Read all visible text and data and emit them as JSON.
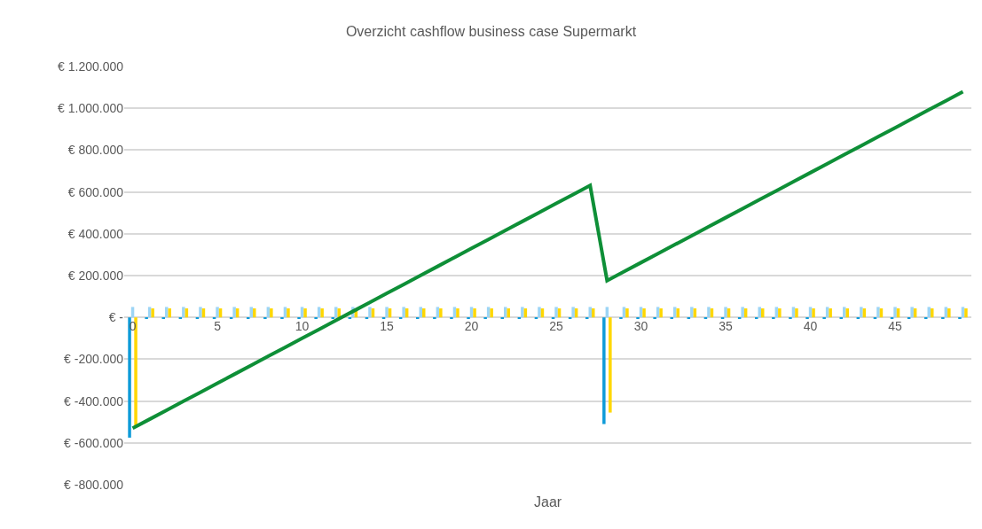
{
  "chart_data": {
    "type": "bar",
    "title": "Overzicht cashflow business case Supermarkt",
    "xlabel": "Jaar",
    "x": [
      0,
      1,
      2,
      3,
      4,
      5,
      6,
      7,
      8,
      9,
      10,
      11,
      12,
      13,
      14,
      15,
      16,
      17,
      18,
      19,
      20,
      21,
      22,
      23,
      24,
      25,
      26,
      27,
      28,
      29,
      30,
      31,
      32,
      33,
      34,
      35,
      36,
      37,
      38,
      39,
      40,
      41,
      42,
      43,
      44,
      45,
      46,
      47,
      48,
      49
    ],
    "series": [
      {
        "color": "#0e9bd8",
        "values": [
          -575000,
          -7000,
          -7000,
          -7000,
          -7000,
          -7000,
          -7000,
          -7000,
          -7000,
          -7000,
          -7000,
          -7000,
          -7000,
          -7000,
          -7000,
          -7000,
          -7000,
          -7000,
          -7000,
          -7000,
          -7000,
          -7000,
          -7000,
          -7000,
          -7000,
          -7000,
          -7000,
          -7000,
          -510000,
          -7000,
          -7000,
          -7000,
          -7000,
          -7000,
          -7000,
          -7000,
          -7000,
          -7000,
          -7000,
          -7000,
          -7000,
          -7000,
          -7000,
          -7000,
          -7000,
          -7000,
          -7000,
          -7000,
          -7000,
          -7000
        ]
      },
      {
        "color": "#9dd5f5",
        "values": [
          50000,
          50000,
          50000,
          50000,
          50000,
          50000,
          50000,
          50000,
          50000,
          50000,
          50000,
          50000,
          50000,
          50000,
          50000,
          50000,
          50000,
          50000,
          50000,
          50000,
          50000,
          50000,
          50000,
          50000,
          50000,
          50000,
          50000,
          50000,
          50000,
          50000,
          50000,
          50000,
          50000,
          50000,
          50000,
          50000,
          50000,
          50000,
          50000,
          50000,
          50000,
          50000,
          50000,
          50000,
          50000,
          50000,
          50000,
          50000,
          50000,
          50000
        ]
      },
      {
        "color": "#ffd700",
        "values": [
          -525000,
          43000,
          43000,
          43000,
          43000,
          43000,
          43000,
          43000,
          43000,
          43000,
          43000,
          43000,
          43000,
          43000,
          43000,
          43000,
          43000,
          43000,
          43000,
          43000,
          43000,
          43000,
          43000,
          43000,
          43000,
          43000,
          43000,
          43000,
          -455000,
          43000,
          43000,
          43000,
          43000,
          43000,
          43000,
          43000,
          43000,
          43000,
          43000,
          43000,
          43000,
          43000,
          43000,
          43000,
          43000,
          43000,
          43000,
          43000,
          43000,
          43000
        ]
      },
      {
        "type": "line",
        "color": "#0e8f37",
        "values": [
          -530000,
          -487000,
          -444000,
          -401000,
          -358000,
          -315000,
          -272000,
          -229000,
          -186000,
          -143000,
          -100000,
          -57000,
          -14000,
          29000,
          72000,
          115000,
          158000,
          201000,
          244000,
          287000,
          330000,
          373000,
          416000,
          459000,
          502000,
          545000,
          588000,
          631000,
          176000,
          219000,
          262000,
          305000,
          348000,
          391000,
          434000,
          477000,
          520000,
          563000,
          606000,
          649000,
          692000,
          735000,
          778000,
          821000,
          864000,
          907000,
          950000,
          993000,
          1036000,
          1079000
        ]
      }
    ],
    "xlim": [
      -0.5,
      49.5
    ],
    "xticks": [
      0,
      5,
      10,
      15,
      20,
      25,
      30,
      35,
      40,
      45
    ],
    "ylim": [
      -800000,
      1200000
    ],
    "yticks": [
      {
        "value": -800000,
        "label": "€ -800.000"
      },
      {
        "value": -600000,
        "label": "€ -600.000"
      },
      {
        "value": -400000,
        "label": "€ -400.000"
      },
      {
        "value": -200000,
        "label": "€ -200.000"
      },
      {
        "value": 0,
        "label": "€ -"
      },
      {
        "value": 200000,
        "label": "€ 200.000"
      },
      {
        "value": 400000,
        "label": "€ 400.000"
      },
      {
        "value": 600000,
        "label": "€ 600.000"
      },
      {
        "value": 800000,
        "label": "€ 800.000"
      },
      {
        "value": 1000000,
        "label": "€ 1.000.000"
      },
      {
        "value": 1200000,
        "label": "€ 1.200.000"
      }
    ],
    "grid": "y",
    "line_style": "solid",
    "marker": "none"
  }
}
